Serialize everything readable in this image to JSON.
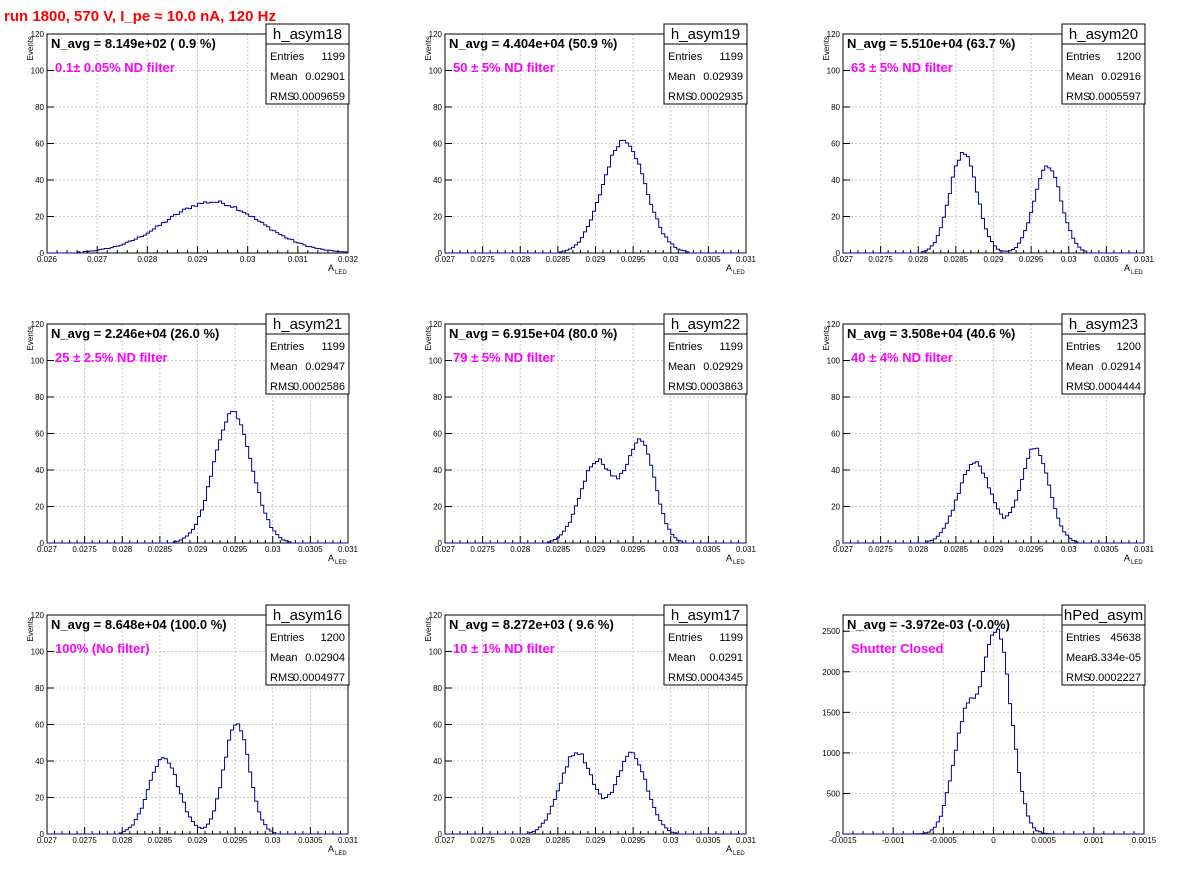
{
  "run_title": "run 1800,   570 V, I_pe ≈ 10.0 nA, 120 Hz",
  "colors": {
    "hist_line": "#000099",
    "title_red": "#ff0000",
    "filter_magenta": "#ff00ff",
    "grid": "#c8c8c8"
  },
  "stats_labels": {
    "entries": "Entries",
    "mean": "Mean",
    "rms": "RMS"
  },
  "chart_data": [
    {
      "type": "histogram",
      "name": "h_asym18",
      "navg": "N_avg = 8.149e+02 ( 0.9 %)",
      "filter": "0.1± 0.05% ND filter",
      "entries": "1199",
      "mean": "0.02901",
      "rms": "0.0009659",
      "ylabel": "Events",
      "xlabel": "A",
      "xlabel_sub": "LED",
      "xlim": [
        0.026,
        0.032
      ],
      "ylim": [
        0,
        120
      ],
      "xticks": [
        0.026,
        0.027,
        0.028,
        0.029,
        0.03,
        0.031,
        0.032
      ],
      "xtick_labels": [
        "0.026",
        "0.027",
        "0.028",
        "0.029",
        "0.03",
        "0.031",
        "0.032"
      ],
      "yticks": [
        0,
        20,
        40,
        60,
        80,
        100,
        120
      ],
      "ytick_labels": [
        "0",
        "20",
        "40",
        "60",
        "80",
        "100",
        "120"
      ],
      "peaks": [
        {
          "mu": 0.0293,
          "sigma": 0.00095,
          "amp": 28
        }
      ]
    },
    {
      "type": "histogram",
      "name": "h_asym19",
      "navg": "N_avg = 4.404e+04 (50.9 %)",
      "filter": "50 ± 5% ND filter",
      "entries": "1199",
      "mean": "0.02939",
      "rms": "0.0002935",
      "ylabel": "Events",
      "xlabel": "A",
      "xlabel_sub": "LED",
      "xlim": [
        0.027,
        0.031
      ],
      "ylim": [
        0,
        120
      ],
      "xticks": [
        0.027,
        0.0275,
        0.028,
        0.0285,
        0.029,
        0.0295,
        0.03,
        0.0305,
        0.031
      ],
      "xtick_labels": [
        "0.027",
        "0.0275",
        "0.028",
        "0.0285",
        "0.029",
        "0.0295",
        "0.03",
        "0.0305",
        "0.031"
      ],
      "yticks": [
        0,
        20,
        40,
        60,
        80,
        100,
        120
      ],
      "ytick_labels": [
        "0",
        "20",
        "40",
        "60",
        "80",
        "100",
        "120"
      ],
      "peaks": [
        {
          "mu": 0.02938,
          "sigma": 0.00028,
          "amp": 62
        }
      ]
    },
    {
      "type": "histogram",
      "name": "h_asym20",
      "navg": "N_avg = 5.510e+04 (63.7 %)",
      "filter": "63 ± 5% ND filter",
      "entries": "1200",
      "mean": "0.02916",
      "rms": "0.0005597",
      "ylabel": "Events",
      "xlabel": "A",
      "xlabel_sub": "LED",
      "xlim": [
        0.027,
        0.031
      ],
      "ylim": [
        0,
        120
      ],
      "xticks": [
        0.027,
        0.0275,
        0.028,
        0.0285,
        0.029,
        0.0295,
        0.03,
        0.0305,
        0.031
      ],
      "xtick_labels": [
        "0.027",
        "0.0275",
        "0.028",
        "0.0285",
        "0.029",
        "0.0295",
        "0.03",
        "0.0305",
        "0.031"
      ],
      "yticks": [
        0,
        20,
        40,
        60,
        80,
        100,
        120
      ],
      "ytick_labels": [
        "0",
        "20",
        "40",
        "60",
        "80",
        "100",
        "120"
      ],
      "peaks": [
        {
          "mu": 0.0286,
          "sigma": 0.00018,
          "amp": 55
        },
        {
          "mu": 0.02972,
          "sigma": 0.00018,
          "amp": 48
        }
      ]
    },
    {
      "type": "histogram",
      "name": "h_asym21",
      "navg": "N_avg = 2.246e+04 (26.0 %)",
      "filter": "25 ± 2.5% ND filter",
      "entries": "1199",
      "mean": "0.02947",
      "rms": "0.0002586",
      "ylabel": "Events",
      "xlabel": "A",
      "xlabel_sub": "LED",
      "xlim": [
        0.027,
        0.031
      ],
      "ylim": [
        0,
        120
      ],
      "xticks": [
        0.027,
        0.0275,
        0.028,
        0.0285,
        0.029,
        0.0295,
        0.03,
        0.0305,
        0.031
      ],
      "xtick_labels": [
        "0.027",
        "0.0275",
        "0.028",
        "0.0285",
        "0.029",
        "0.0295",
        "0.03",
        "0.0305",
        "0.031"
      ],
      "yticks": [
        0,
        20,
        40,
        60,
        80,
        100,
        120
      ],
      "ytick_labels": [
        "0",
        "20",
        "40",
        "60",
        "80",
        "100",
        "120"
      ],
      "peaks": [
        {
          "mu": 0.02947,
          "sigma": 0.00025,
          "amp": 72
        }
      ]
    },
    {
      "type": "histogram",
      "name": "h_asym22",
      "navg": "N_avg = 6.915e+04 (80.0 %)",
      "filter": "79 ± 5% ND filter",
      "entries": "1199",
      "mean": "0.02929",
      "rms": "0.0003863",
      "ylabel": "Events",
      "xlabel": "A",
      "xlabel_sub": "LED",
      "xlim": [
        0.027,
        0.031
      ],
      "ylim": [
        0,
        120
      ],
      "xticks": [
        0.027,
        0.0275,
        0.028,
        0.0285,
        0.029,
        0.0295,
        0.03,
        0.0305,
        0.031
      ],
      "xtick_labels": [
        "0.027",
        "0.0275",
        "0.028",
        "0.0285",
        "0.029",
        "0.0295",
        "0.03",
        "0.0305",
        "0.031"
      ],
      "yticks": [
        0,
        20,
        40,
        60,
        80,
        100,
        120
      ],
      "ytick_labels": [
        "0",
        "20",
        "40",
        "60",
        "80",
        "100",
        "120"
      ],
      "peaks": [
        {
          "mu": 0.02902,
          "sigma": 0.00022,
          "amp": 45
        },
        {
          "mu": 0.0296,
          "sigma": 0.00019,
          "amp": 55
        }
      ]
    },
    {
      "type": "histogram",
      "name": "h_asym23",
      "navg": "N_avg = 3.508e+04 (40.6 %)",
      "filter": "40 ± 4% ND filter",
      "entries": "1200",
      "mean": "0.02914",
      "rms": "0.0004444",
      "ylabel": "Events",
      "xlabel": "A",
      "xlabel_sub": "LED",
      "xlim": [
        0.027,
        0.031
      ],
      "ylim": [
        0,
        120
      ],
      "xticks": [
        0.027,
        0.0275,
        0.028,
        0.0285,
        0.029,
        0.0295,
        0.03,
        0.0305,
        0.031
      ],
      "xtick_labels": [
        "0.027",
        "0.0275",
        "0.028",
        "0.0285",
        "0.029",
        "0.0295",
        "0.03",
        "0.0305",
        "0.031"
      ],
      "yticks": [
        0,
        20,
        40,
        60,
        80,
        100,
        120
      ],
      "ytick_labels": [
        "0",
        "20",
        "40",
        "60",
        "80",
        "100",
        "120"
      ],
      "peaks": [
        {
          "mu": 0.02875,
          "sigma": 0.00022,
          "amp": 44
        },
        {
          "mu": 0.02955,
          "sigma": 0.00019,
          "amp": 52
        }
      ]
    },
    {
      "type": "histogram",
      "name": "h_asym16",
      "navg": "N_avg = 8.648e+04 (100.0 %)",
      "filter": "100% (No filter)",
      "entries": "1200",
      "mean": "0.02904",
      "rms": "0.0004977",
      "ylabel": "Events",
      "xlabel": "A",
      "xlabel_sub": "LED",
      "xlim": [
        0.027,
        0.031
      ],
      "ylim": [
        0,
        120
      ],
      "xticks": [
        0.027,
        0.0275,
        0.028,
        0.0285,
        0.029,
        0.0295,
        0.03,
        0.0305,
        0.031
      ],
      "xtick_labels": [
        "0.027",
        "0.0275",
        "0.028",
        "0.0285",
        "0.029",
        "0.0295",
        "0.03",
        "0.0305",
        "0.031"
      ],
      "yticks": [
        0,
        20,
        40,
        60,
        80,
        100,
        120
      ],
      "ytick_labels": [
        "0",
        "20",
        "40",
        "60",
        "80",
        "100",
        "120"
      ],
      "peaks": [
        {
          "mu": 0.02855,
          "sigma": 0.0002,
          "amp": 42
        },
        {
          "mu": 0.02952,
          "sigma": 0.00017,
          "amp": 60
        }
      ]
    },
    {
      "type": "histogram",
      "name": "h_asym17",
      "navg": "N_avg = 8.272e+03 ( 9.6 %)",
      "filter": "10 ± 1% ND filter",
      "entries": "1199",
      "mean": "0.0291",
      "rms": "0.0004345",
      "ylabel": "Events",
      "xlabel": "A",
      "xlabel_sub": "LED",
      "xlim": [
        0.027,
        0.031
      ],
      "ylim": [
        0,
        120
      ],
      "xticks": [
        0.027,
        0.0275,
        0.028,
        0.0285,
        0.029,
        0.0295,
        0.03,
        0.0305,
        0.031
      ],
      "xtick_labels": [
        "0.027",
        "0.0275",
        "0.028",
        "0.0285",
        "0.029",
        "0.0295",
        "0.03",
        "0.0305",
        "0.031"
      ],
      "yticks": [
        0,
        20,
        40,
        60,
        80,
        100,
        120
      ],
      "ytick_labels": [
        "0",
        "20",
        "40",
        "60",
        "80",
        "100",
        "120"
      ],
      "peaks": [
        {
          "mu": 0.02875,
          "sigma": 0.00022,
          "amp": 45
        },
        {
          "mu": 0.02948,
          "sigma": 0.0002,
          "amp": 44
        }
      ]
    },
    {
      "type": "histogram",
      "name": "hPed_asym",
      "navg": "N_avg = -3.972e-03 (-0.0%)",
      "filter": "Shutter Closed",
      "entries": "45638",
      "mean": "-3.334e-05",
      "rms": "0.0002227",
      "ylabel": "",
      "xlabel": "",
      "xlabel_sub": "",
      "xlim": [
        -0.0015,
        0.0015
      ],
      "ylim": [
        0,
        2700
      ],
      "xticks": [
        -0.0015,
        -0.001,
        -0.0005,
        0,
        0.0005,
        0.001,
        0.0015
      ],
      "xtick_labels": [
        "-0.0015",
        "-0.001",
        "-0.0005",
        "0",
        "0.0005",
        "0.001",
        "0.0015"
      ],
      "yticks": [
        0,
        500,
        1000,
        1500,
        2000,
        2500
      ],
      "ytick_labels": [
        "0",
        "500",
        "1000",
        "1500",
        "2000",
        "2500"
      ],
      "peaks": [
        {
          "mu": -0.00028,
          "sigma": 0.00013,
          "amp": 1350
        },
        {
          "mu": 4e-05,
          "sigma": 0.00014,
          "amp": 2450
        }
      ]
    }
  ]
}
